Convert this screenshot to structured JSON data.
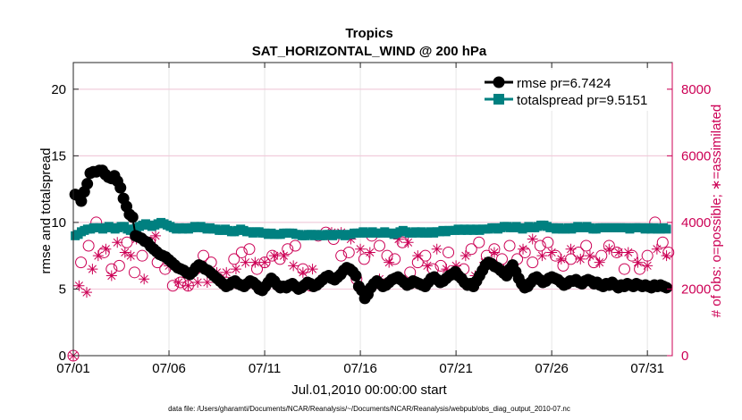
{
  "chart_data": {
    "type": "line",
    "title": "Tropics",
    "subtitle": "SAT_HORIZONTAL_WIND @ 200 hPa",
    "xlabel": "Jul.01,2010 00:00:00 start",
    "ylabel": "rmse and totalspread",
    "y2label": "# of obs: o=possible; ∗=assimilated",
    "footer": "data file: /Users/gharamti/Documents/NCAR/Reanalysis/~/Documents/NCAR/Reanalysis/webpub/obs_diag_output_2010-07.nc",
    "xlim": [
      0,
      31.3
    ],
    "ylim": [
      0,
      22
    ],
    "y2lim": [
      0,
      8800
    ],
    "x_tick_labels": [
      "07/01",
      "07/06",
      "07/11",
      "07/16",
      "07/21",
      "07/26",
      "07/31"
    ],
    "x_tick_values": [
      0,
      5,
      10,
      15,
      20,
      25,
      30
    ],
    "y_tick_labels": [
      "0",
      "5",
      "10",
      "15",
      "20"
    ],
    "y_tick_values": [
      0,
      5,
      10,
      15,
      20
    ],
    "y2_tick_labels": [
      "0",
      "2000",
      "4000",
      "6000",
      "8000"
    ],
    "y2_tick_values": [
      0,
      2000,
      4000,
      6000,
      8000
    ],
    "legend_position": "top-right",
    "colors": {
      "rmse": "#000000",
      "spread": "#008080",
      "obs": "#cc0055"
    },
    "series": [
      {
        "name": "rmse pr=6.7424",
        "values": [
          12.1,
          12.0,
          11.6,
          12.3,
          12.9,
          13.7,
          13.8,
          13.8,
          13.9,
          13.9,
          13.6,
          13.4,
          13.3,
          13.5,
          13.1,
          12.6,
          11.8,
          11.2,
          10.6,
          10.4,
          9.0,
          8.9,
          8.8,
          8.6,
          8.5,
          8.2,
          8.0,
          7.8,
          7.6,
          7.5,
          7.4,
          7.2,
          7.0,
          6.8,
          6.6,
          6.5,
          6.4,
          6.2,
          6.1,
          6.3,
          6.6,
          6.8,
          6.7,
          6.5,
          6.4,
          6.2,
          6.0,
          5.8,
          5.6,
          5.4,
          5.2,
          5.3,
          5.5,
          5.6,
          5.4,
          5.3,
          5.2,
          5.4,
          5.6,
          5.5,
          5.3,
          5.0,
          4.9,
          5.2,
          5.5,
          5.8,
          5.6,
          5.3,
          5.1,
          5.2,
          5.1,
          5.3,
          5.4,
          5.2,
          5.0,
          5.1,
          5.3,
          5.5,
          5.4,
          5.2,
          5.3,
          5.5,
          5.7,
          5.9,
          6.0,
          5.8,
          5.7,
          5.9,
          6.1,
          6.4,
          6.6,
          6.5,
          6.3,
          6.0,
          5.2,
          4.9,
          4.3,
          4.6,
          5.1,
          5.4,
          5.6,
          5.4,
          5.2,
          5.3,
          5.5,
          5.7,
          5.8,
          5.9,
          5.7,
          5.5,
          5.3,
          5.4,
          5.6,
          5.5,
          5.4,
          5.3,
          5.2,
          5.5,
          5.8,
          5.9,
          5.7,
          5.5,
          5.6,
          5.8,
          6.0,
          6.1,
          6.3,
          6.0,
          5.8,
          5.5,
          5.3,
          5.4,
          5.2,
          5.6,
          6.0,
          6.4,
          6.8,
          7.0,
          6.9,
          6.7,
          6.6,
          6.4,
          6.2,
          6.0,
          6.5,
          6.8,
          6.3,
          5.8,
          5.4,
          5.1,
          5.2,
          5.5,
          5.8,
          5.9,
          5.7,
          5.5,
          5.6,
          5.8,
          5.9,
          5.8,
          5.7,
          5.5,
          5.3,
          5.4,
          5.6,
          5.6,
          5.7,
          5.5,
          5.4,
          5.6,
          5.7,
          5.6,
          5.4,
          5.5,
          5.3,
          5.2,
          5.4,
          5.3,
          5.5,
          5.3,
          5.1,
          5.3,
          5.2,
          5.4,
          5.3,
          5.2,
          5.4,
          5.3,
          5.2,
          5.3,
          5.2,
          5.1,
          5.3,
          5.2,
          5.3,
          5.2,
          5.1
        ]
      },
      {
        "name": "totalspread pr=9.5151",
        "values": [
          9.0,
          9.1,
          9.3,
          9.4,
          9.5,
          9.5,
          9.6,
          9.6,
          9.6,
          9.5,
          9.6,
          9.7,
          9.6,
          9.5,
          9.6,
          9.7,
          9.7,
          9.5,
          9.4,
          9.5,
          9.6,
          9.7,
          9.8,
          9.9,
          9.8,
          9.7,
          9.8,
          9.9,
          10.0,
          9.9,
          9.8,
          9.7,
          9.6,
          9.5,
          9.6,
          9.5,
          9.6,
          9.5,
          9.6,
          9.7,
          9.6,
          9.7,
          9.6,
          9.5,
          9.6,
          9.5,
          9.5,
          9.4,
          9.4,
          9.5,
          9.4,
          9.3,
          9.3,
          9.4,
          9.5,
          9.4,
          9.3,
          9.3,
          9.2,
          9.3,
          9.3,
          9.2,
          9.2,
          9.1,
          9.2,
          9.1,
          9.1,
          9.1,
          9.2,
          9.2,
          9.2,
          9.2,
          9.1,
          9.1,
          9.0,
          9.0,
          9.1,
          9.1,
          9.0,
          9.1,
          9.0,
          9.0,
          9.1,
          9.1,
          9.0,
          9.1,
          9.1,
          9.1,
          9.0,
          9.1,
          9.1,
          9.2,
          9.2,
          9.2,
          9.3,
          9.2,
          9.2,
          9.3,
          9.2,
          9.2,
          9.2,
          9.3,
          9.2,
          9.2,
          9.1,
          9.2,
          9.3,
          9.4,
          9.3,
          9.2,
          9.2,
          9.3,
          9.2,
          9.3,
          9.2,
          9.2,
          9.3,
          9.2,
          9.3,
          9.3,
          9.4,
          9.3,
          9.4,
          9.4,
          9.4,
          9.5,
          9.4,
          9.5,
          9.4,
          9.5,
          9.4,
          9.5,
          9.4,
          9.5,
          9.5,
          9.5,
          9.6,
          9.6,
          9.5,
          9.6,
          9.7,
          9.7,
          9.6,
          9.6,
          9.7,
          9.6,
          9.5,
          9.6,
          9.7,
          9.6,
          9.6,
          9.7,
          9.8,
          9.8,
          9.7,
          9.6,
          9.6,
          9.5,
          9.6,
          9.5,
          9.5,
          9.6,
          9.5,
          9.6,
          9.7,
          9.6,
          9.6,
          9.7,
          9.6,
          9.5,
          9.5,
          9.6,
          9.6,
          9.6,
          9.6,
          9.6,
          9.6,
          9.6,
          9.6,
          9.6,
          9.6,
          9.5,
          9.6,
          9.6,
          9.6,
          9.6,
          9.5,
          9.6,
          9.5,
          9.6,
          9.5,
          9.5,
          9.6,
          9.5
        ]
      },
      {
        "name": "obs possible",
        "axis": "right",
        "x": [
          0,
          0.4,
          0.8,
          1.2,
          1.6,
          2.0,
          2.4,
          2.8,
          3.2,
          3.6,
          4.0,
          4.4,
          4.8,
          5.2,
          5.6,
          6.0,
          6.4,
          6.8,
          7.2,
          7.6,
          8.0,
          8.4,
          8.8,
          9.2,
          9.6,
          10.0,
          10.4,
          10.8,
          11.2,
          11.6,
          12.0,
          12.4,
          12.8,
          13.2,
          13.6,
          14.0,
          14.4,
          14.8,
          15.2,
          15.6,
          16.0,
          16.4,
          16.8,
          17.2,
          17.6,
          18.0,
          18.4,
          18.8,
          19.2,
          19.6,
          20.0,
          20.4,
          20.8,
          21.2,
          21.6,
          22.0,
          22.4,
          22.8,
          23.2,
          23.6,
          24.0,
          24.4,
          24.8,
          25.2,
          25.6,
          26.0,
          26.4,
          26.8,
          27.2,
          27.6,
          28.0,
          28.4,
          28.8,
          29.2,
          29.6,
          30.0,
          30.4,
          30.8,
          31.1
        ],
        "values": [
          0,
          2800,
          3300,
          4000,
          3100,
          2600,
          2700,
          3400,
          2500,
          3000,
          3400,
          2800,
          2600,
          2100,
          2200,
          2100,
          2600,
          3000,
          2800,
          2300,
          2200,
          2900,
          3100,
          3200,
          2600,
          2800,
          3000,
          2900,
          3200,
          3300,
          2600,
          2100,
          3600,
          3700,
          3500,
          3000,
          3100,
          2300,
          2900,
          3600,
          3300,
          3000,
          2900,
          3400,
          2500,
          2800,
          3000,
          2600,
          2700,
          3100,
          2500,
          2600,
          3200,
          3400,
          3000,
          3200,
          2900,
          3300,
          2900,
          3100,
          2800,
          3300,
          3400,
          3000,
          2700,
          2900,
          3100,
          3300,
          2800,
          3000,
          3300,
          3100,
          2600,
          3000,
          2600,
          3000,
          4000,
          3400,
          3100
        ]
      },
      {
        "name": "obs assimilated",
        "axis": "right",
        "x": [
          0,
          0.3,
          0.7,
          1.0,
          1.3,
          1.7,
          2.0,
          2.3,
          2.7,
          3.0,
          3.3,
          3.7,
          4.0,
          4.3,
          4.7,
          5.0,
          5.5,
          6.0,
          6.5,
          7.0,
          7.5,
          8.0,
          8.5,
          9.0,
          9.5,
          10.0,
          10.5,
          11.0,
          11.5,
          12.0,
          12.5,
          13.0,
          13.5,
          14.0,
          14.5,
          15.0,
          15.5,
          16.0,
          16.5,
          17.0,
          17.5,
          18.0,
          18.5,
          19.0,
          19.5,
          20.0,
          20.5,
          21.0,
          21.5,
          22.0,
          22.5,
          23.0,
          23.5,
          24.0,
          24.5,
          25.0,
          25.5,
          26.0,
          26.5,
          27.0,
          27.5,
          28.0,
          28.5,
          29.0,
          29.5,
          30.0,
          30.5,
          31.0
        ],
        "values": [
          0,
          2100,
          1900,
          2600,
          3000,
          3200,
          2400,
          3400,
          3100,
          3000,
          3500,
          2300,
          3300,
          3600,
          3000,
          2700,
          2200,
          2100,
          2200,
          2200,
          2500,
          2500,
          2600,
          2800,
          2800,
          2800,
          3000,
          3000,
          2700,
          2500,
          2600,
          2300,
          3700,
          3700,
          3500,
          3200,
          3100,
          2300,
          2800,
          3500,
          3400,
          3000,
          2700,
          3200,
          2600,
          2700,
          3000,
          2400,
          2800,
          3100,
          2600,
          2600,
          3200,
          3500,
          3000,
          3100,
          2900,
          3200,
          2900,
          3000,
          2800,
          3200,
          3100,
          3100,
          2800,
          2700,
          3200,
          3000
        ]
      }
    ]
  }
}
